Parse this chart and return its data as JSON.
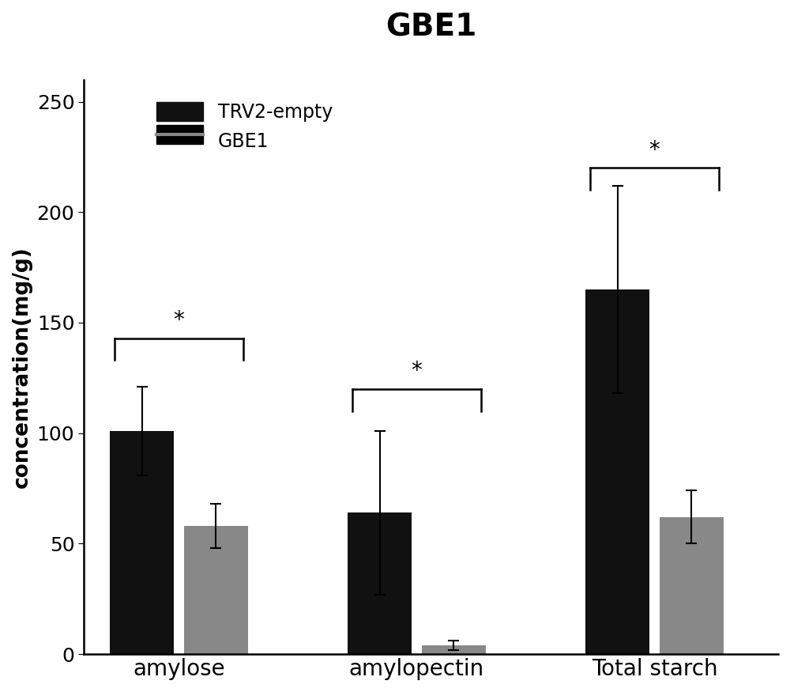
{
  "title": "GBE1",
  "title_fontsize": 28,
  "title_fontweight": "bold",
  "ylabel": "concentration(mg/g)",
  "ylabel_fontsize": 19,
  "ylabel_fontweight": "bold",
  "categories": [
    "amylose",
    "amylopectin",
    "Total starch"
  ],
  "xtick_fontsize": 20,
  "ytick_fontsize": 18,
  "bar_width": 0.68,
  "trv2_values": [
    101,
    64,
    165
  ],
  "trv2_errors": [
    20,
    37,
    47
  ],
  "gbe1_values": [
    58,
    4,
    62
  ],
  "gbe1_errors": [
    10,
    2,
    12
  ],
  "trv2_color": "#111111",
  "gbe1_color": "#888888",
  "ylim": [
    0,
    260
  ],
  "yticks": [
    0,
    50,
    100,
    150,
    200,
    250
  ],
  "legend_labels": [
    "TRV2-empty",
    "GBE1"
  ],
  "legend_fontsize": 17,
  "background_color": "#ffffff",
  "spine_linewidth": 1.8,
  "capsize": 5,
  "error_linewidth": 1.5,
  "group_positions": [
    1.0,
    3.5,
    6.0
  ],
  "bracket_lw": 1.8
}
